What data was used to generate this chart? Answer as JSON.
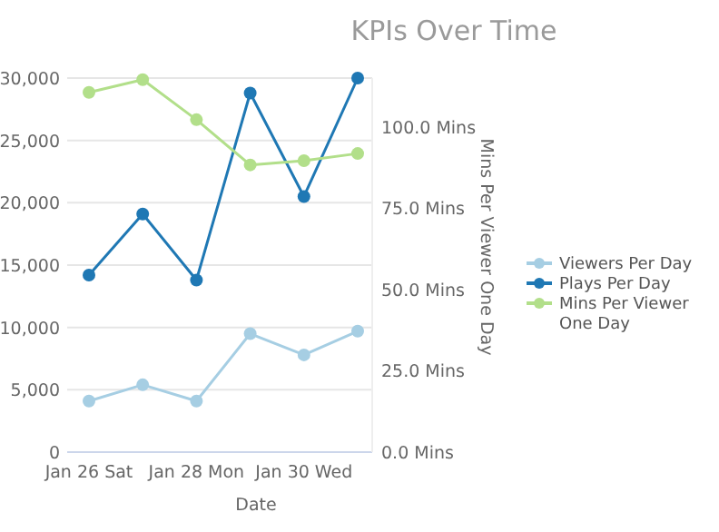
{
  "chart_data": {
    "type": "line",
    "title": "KPIs Over Time",
    "xlabel": "Date",
    "y2label": "Mins Per Viewer One Day",
    "categories": [
      "Jan 26 Sat",
      null,
      "Jan 28 Mon",
      null,
      "Jan 30 Wed",
      null
    ],
    "series": [
      {
        "name": "Viewers Per Day",
        "color": "#a6cee3",
        "values": [
          4100,
          5400,
          4100,
          9500,
          7800,
          9700
        ]
      },
      {
        "name": "Plays Per Day",
        "color": "#1f78b4",
        "values": [
          14200,
          19100,
          13800,
          28800,
          20500,
          30000
        ]
      },
      {
        "name": "Mins Per Viewer One Day",
        "color": "#b2df8a",
        "axis": "y2",
        "values": [
          110.6,
          114.5,
          102.2,
          88.3,
          89.6,
          91.8
        ]
      }
    ],
    "ylim": [
      0,
      30000
    ],
    "yticks": [
      {
        "value": 0,
        "label": "0"
      },
      {
        "value": 5000,
        "label": "5,000"
      },
      {
        "value": 10000,
        "label": "10,000"
      },
      {
        "value": 15000,
        "label": "15,000"
      },
      {
        "value": 20000,
        "label": "20,000"
      },
      {
        "value": 25000,
        "label": "25,000"
      },
      {
        "value": 30000,
        "label": "30,000"
      }
    ],
    "y2lim": [
      0,
      115
    ],
    "y2ticks": [
      {
        "value": 0,
        "label": "0.0 Mins"
      },
      {
        "value": 25,
        "label": "25.0 Mins"
      },
      {
        "value": 50,
        "label": "50.0 Mins"
      },
      {
        "value": 75,
        "label": "75.0 Mins"
      },
      {
        "value": 100,
        "label": "100.0 Mins"
      }
    ],
    "grid": "y",
    "legend": "right",
    "marker": "circle",
    "line_style": "solid"
  }
}
